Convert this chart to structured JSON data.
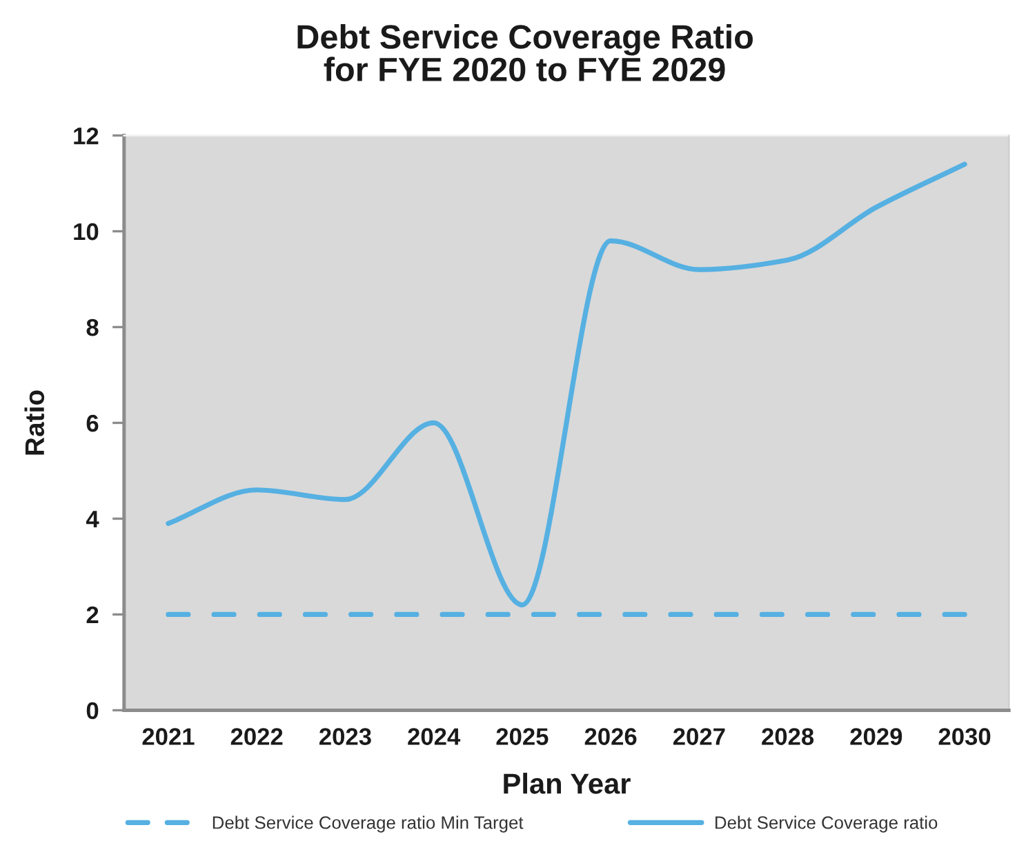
{
  "chart_data": {
    "type": "line",
    "title": "Debt Service Coverage Ratio\nfor FYE 2020 to FYE 2029",
    "xlabel": "Plan Year",
    "ylabel": "Ratio",
    "categories": [
      "2021",
      "2022",
      "2023",
      "2024",
      "2025",
      "2026",
      "2027",
      "2028",
      "2029",
      "2030"
    ],
    "series": [
      {
        "name": "Debt Service Coverage ratio Min Target",
        "color": "#56b0e2",
        "line_style": "dashed",
        "values": [
          2,
          2,
          2,
          2,
          2,
          2,
          2,
          2,
          2,
          2
        ]
      },
      {
        "name": "Debt Service Coverage ratio",
        "color": "#56b0e2",
        "line_style": "solid",
        "values": [
          3.9,
          4.6,
          4.4,
          6.0,
          2.2,
          9.8,
          9.2,
          9.4,
          10.5,
          11.4
        ]
      }
    ],
    "ylim": [
      0,
      12
    ],
    "yticks": [
      0,
      2,
      4,
      6,
      8,
      10,
      12
    ],
    "grid": false,
    "legend": "bottom"
  }
}
